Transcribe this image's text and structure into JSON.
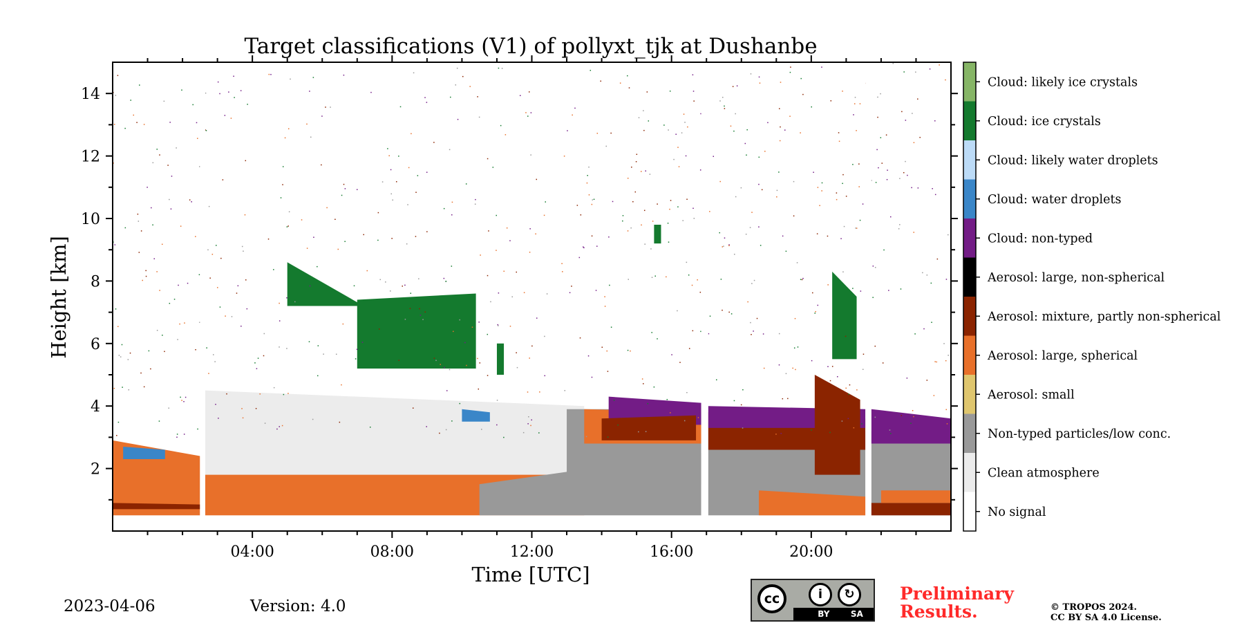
{
  "chart_data": {
    "type": "heatmap",
    "title": "Target classifications (V1) of pollyxt_tjk at Dushanbe",
    "xlabel": "Time [UTC]",
    "ylabel": "Height [km]",
    "x_ticks": [
      "04:00",
      "08:00",
      "12:00",
      "16:00",
      "20:00"
    ],
    "x_tick_hours": [
      4,
      8,
      12,
      16,
      20
    ],
    "xlim_hours": [
      0,
      24
    ],
    "y_ticks": [
      "2",
      "4",
      "6",
      "8",
      "10",
      "12",
      "14"
    ],
    "y_tick_values": [
      2,
      4,
      6,
      8,
      10,
      12,
      14
    ],
    "ylim_km": [
      0,
      15
    ],
    "lowest_range_km": 0.5,
    "grid": false,
    "classes": [
      {
        "label": "No signal",
        "color": "#ffffff"
      },
      {
        "label": "Clean atmosphere",
        "color": "#ececec"
      },
      {
        "label": "Non-typed particles/low conc.",
        "color": "#999999"
      },
      {
        "label": "Aerosol: small",
        "color": "#dfc66e"
      },
      {
        "label": "Aerosol: large, spherical",
        "color": "#e8702a"
      },
      {
        "label": "Aerosol: mixture, partly non-spherical",
        "color": "#8b2400"
      },
      {
        "label": "Aerosol: large, non-spherical",
        "color": "#000000"
      },
      {
        "label": "Cloud: non-typed",
        "color": "#731c86"
      },
      {
        "label": "Cloud: water droplets",
        "color": "#3a86c8"
      },
      {
        "label": "Cloud: likely water droplets",
        "color": "#bcdbf7"
      },
      {
        "label": "Cloud: ice crystals",
        "color": "#147a2e"
      },
      {
        "label": "Cloud: likely ice crystals",
        "color": "#86b566"
      }
    ],
    "data_gaps_hours": [
      [
        2.5,
        2.65
      ],
      [
        16.85,
        17.05
      ],
      [
        21.55,
        21.72
      ]
    ],
    "regions": [
      {
        "class": "Aerosol: large, spherical",
        "start": 0.0,
        "end": 2.5,
        "bottom": 0.5,
        "top": [
          2.9,
          2.4
        ]
      },
      {
        "class": "Aerosol: mixture, partly non-spherical",
        "start": 0.0,
        "end": 2.5,
        "bottom": 0.7,
        "top": [
          0.9,
          0.85
        ]
      },
      {
        "class": "Cloud: water droplets",
        "start": 0.3,
        "end": 1.5,
        "bottom": 2.3,
        "top": [
          2.7,
          2.6
        ]
      },
      {
        "class": "Aerosol: large, spherical",
        "start": 2.65,
        "end": 13.5,
        "bottom": 0.5,
        "top": [
          2.8,
          1.8
        ]
      },
      {
        "class": "Clean atmosphere",
        "start": 2.65,
        "end": 13.5,
        "bottom": 1.8,
        "top": [
          4.5,
          4.0
        ]
      },
      {
        "class": "Non-typed particles/low conc.",
        "start": 10.5,
        "end": 16.85,
        "bottom": 0.5,
        "top": [
          1.5,
          2.5
        ]
      },
      {
        "class": "Non-typed particles/low conc.",
        "start": 13.0,
        "end": 16.85,
        "bottom": 1.5,
        "top": [
          3.9,
          3.9
        ]
      },
      {
        "class": "Aerosol: large, spherical",
        "start": 13.5,
        "end": 16.85,
        "bottom": 2.8,
        "top": [
          3.9,
          3.8
        ]
      },
      {
        "class": "Cloud: non-typed",
        "start": 14.2,
        "end": 16.85,
        "bottom": 3.4,
        "top": [
          4.3,
          4.1
        ]
      },
      {
        "class": "Aerosol: mixture, partly non-spherical",
        "start": 14.0,
        "end": 16.7,
        "bottom": 2.9,
        "top": [
          3.6,
          3.7
        ]
      },
      {
        "class": "Non-typed particles/low conc.",
        "start": 17.05,
        "end": 21.55,
        "bottom": 0.5,
        "top": [
          3.5,
          3.2
        ]
      },
      {
        "class": "Aerosol: large, spherical",
        "start": 18.5,
        "end": 21.55,
        "bottom": 0.5,
        "top": [
          1.3,
          1.1
        ]
      },
      {
        "class": "Aerosol: mixture, partly non-spherical",
        "start": 17.05,
        "end": 21.55,
        "bottom": 2.6,
        "top": [
          3.8,
          3.6
        ]
      },
      {
        "class": "Cloud: non-typed",
        "start": 17.05,
        "end": 21.55,
        "bottom": 3.3,
        "top": [
          4.0,
          3.9
        ]
      },
      {
        "class": "Aerosol: mixture, partly non-spherical",
        "start": 20.1,
        "end": 21.4,
        "bottom": 1.8,
        "top": [
          5.0,
          4.2
        ]
      },
      {
        "class": "Non-typed particles/low conc.",
        "start": 21.72,
        "end": 24.0,
        "bottom": 0.5,
        "top": [
          3.2,
          3.0
        ]
      },
      {
        "class": "Aerosol: mixture, partly non-spherical",
        "start": 21.72,
        "end": 24.0,
        "bottom": 0.5,
        "top": [
          0.9,
          0.9
        ]
      },
      {
        "class": "Aerosol: large, spherical",
        "start": 22.0,
        "end": 24.0,
        "bottom": 0.9,
        "top": [
          1.3,
          1.3
        ]
      },
      {
        "class": "Cloud: non-typed",
        "start": 21.72,
        "end": 24.0,
        "bottom": 2.8,
        "top": [
          3.9,
          3.6
        ]
      },
      {
        "class": "Cloud: ice crystals",
        "start": 5.0,
        "end": 7.5,
        "bottom": 7.2,
        "top": [
          8.6,
          7.0
        ]
      },
      {
        "class": "Cloud: ice crystals",
        "start": 7.0,
        "end": 10.4,
        "bottom": 5.2,
        "top": [
          7.4,
          7.6
        ]
      },
      {
        "class": "Cloud: ice crystals",
        "start": 11.0,
        "end": 11.2,
        "bottom": 5.0,
        "top": [
          6.0,
          6.0
        ]
      },
      {
        "class": "Cloud: ice crystals",
        "start": 20.6,
        "end": 21.3,
        "bottom": 5.5,
        "top": [
          8.3,
          7.5
        ]
      },
      {
        "class": "Cloud: ice crystals",
        "start": 15.5,
        "end": 15.7,
        "bottom": 9.2,
        "top": [
          9.8,
          9.8
        ]
      },
      {
        "class": "Cloud: water droplets",
        "start": 10.0,
        "end": 10.8,
        "bottom": 3.5,
        "top": [
          3.9,
          3.8
        ]
      }
    ]
  },
  "footer": {
    "date": "2023-04-06",
    "version": "Version: 4.0",
    "license_badge": {
      "cc": "cc",
      "by": "BY",
      "sa": "SA"
    },
    "preliminary": "Preliminary Results.",
    "copyright_line1": "© TROPOS 2024.",
    "copyright_line2": "CC BY SA 4.0 License."
  }
}
